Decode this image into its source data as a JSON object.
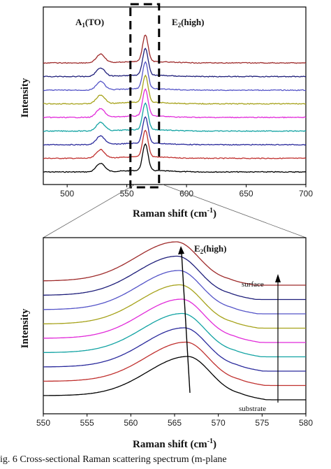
{
  "chart_data": [
    {
      "type": "line",
      "title": "",
      "xlabel": "Raman shift (cm",
      "xlabel_sup": "-1",
      "xlabel_end": ")",
      "ylabel": "Intensity",
      "xlim": [
        480,
        700
      ],
      "xticks": [
        "500",
        "550",
        "600",
        "650",
        "700"
      ],
      "annotations": [
        {
          "text": "A",
          "sub": "1",
          "rest": "(TO)",
          "x": 528
        },
        {
          "text": "E",
          "sub": "2",
          "rest": "(high)",
          "x": 595
        }
      ],
      "highlight_range": [
        553,
        577
      ],
      "baseline_noise": true,
      "peaks": [
        {
          "center": 528,
          "width": 5,
          "height": 0.32
        },
        {
          "center": 565.5,
          "width": 3.2,
          "height": 1.0
        }
      ],
      "series": [
        {
          "color": "#000000",
          "offset": 0
        },
        {
          "color": "#c0302e",
          "offset": 1
        },
        {
          "color": "#2a2a9c",
          "offset": 2
        },
        {
          "color": "#12a3a3",
          "offset": 3
        },
        {
          "color": "#e12ad9",
          "offset": 4
        },
        {
          "color": "#a6a21a",
          "offset": 5
        },
        {
          "color": "#5454c8",
          "offset": 6
        },
        {
          "color": "#1e1e7a",
          "offset": 7
        },
        {
          "color": "#9e2a2a",
          "offset": 8
        }
      ]
    },
    {
      "type": "line",
      "title": "",
      "xlabel": "Raman shift (cm",
      "xlabel_sup": "-1",
      "xlabel_end": ")",
      "ylabel": "Intensity",
      "xlim": [
        550,
        580
      ],
      "xticks": [
        "550",
        "555",
        "560",
        "565",
        "570",
        "575",
        "580"
      ],
      "annotations": [
        {
          "text": "E",
          "sub": "2",
          "rest": "(high)"
        }
      ],
      "labels": {
        "top": "surface",
        "bottom": "substrate"
      },
      "peak_centers": [
        566.5,
        566.3,
        566.1,
        565.9,
        565.8,
        565.6,
        565.5,
        565.3,
        565.2
      ],
      "series": [
        {
          "color": "#000000"
        },
        {
          "color": "#c0302e"
        },
        {
          "color": "#2a2a9c"
        },
        {
          "color": "#12a3a3"
        },
        {
          "color": "#e12ad9"
        },
        {
          "color": "#a6a21a"
        },
        {
          "color": "#5454c8"
        },
        {
          "color": "#1e1e7a"
        },
        {
          "color": "#9e2a2a"
        }
      ]
    }
  ],
  "caption": "ig. 6  Cross-sectional Raman scattering spectrum (m-plane"
}
